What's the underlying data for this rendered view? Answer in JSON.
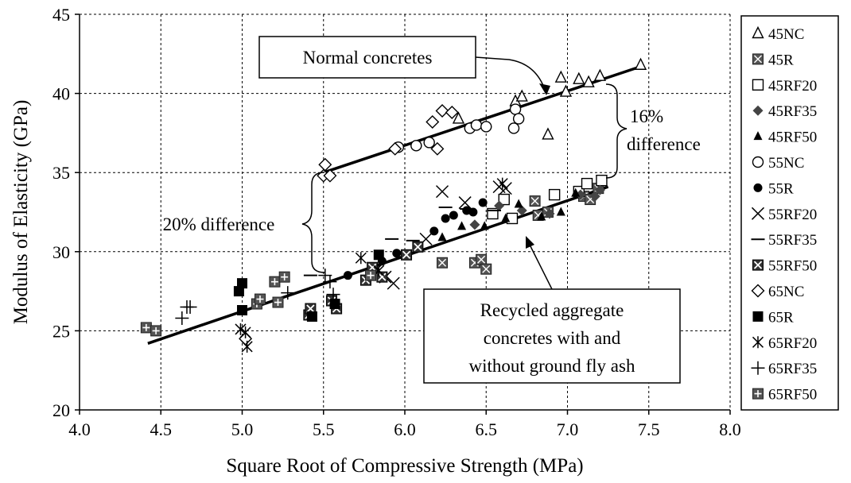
{
  "chart_data": {
    "type": "scatter",
    "title": "",
    "xlabel": "Square Root of Compressive Strength (MPa)",
    "ylabel": "Modulus of Elasticity (GPa)",
    "xlim": [
      4.0,
      8.0
    ],
    "ylim": [
      20,
      45
    ],
    "x_ticks": [
      "4.0",
      "4.5",
      "5.0",
      "5.5",
      "6.0",
      "6.5",
      "7.0",
      "7.5",
      "8.0"
    ],
    "y_ticks": [
      "20",
      "25",
      "30",
      "35",
      "40",
      "45"
    ],
    "grid": true,
    "legend_position": "right",
    "series": [
      {
        "name": "45NC",
        "marker": "triangle-open",
        "points": [
          [
            6.33,
            38.4
          ],
          [
            6.68,
            39.5
          ],
          [
            6.72,
            39.8
          ],
          [
            6.88,
            37.4
          ],
          [
            6.96,
            41.0
          ],
          [
            6.99,
            40.1
          ],
          [
            7.07,
            40.9
          ],
          [
            7.13,
            40.7
          ],
          [
            7.2,
            41.1
          ],
          [
            7.45,
            41.8
          ]
        ]
      },
      {
        "name": "45R",
        "marker": "square-x",
        "points": [
          [
            6.23,
            29.3
          ],
          [
            6.43,
            29.3
          ],
          [
            6.47,
            29.5
          ],
          [
            6.5,
            28.9
          ],
          [
            6.8,
            33.2
          ],
          [
            6.82,
            32.3
          ],
          [
            6.88,
            32.5
          ],
          [
            7.1,
            33.5
          ],
          [
            7.14,
            33.3
          ],
          [
            7.19,
            34.0
          ]
        ]
      },
      {
        "name": "45RF20",
        "marker": "square-open",
        "points": [
          [
            6.54,
            32.4
          ],
          [
            6.61,
            33.3
          ],
          [
            6.66,
            32.1
          ],
          [
            6.92,
            33.6
          ],
          [
            7.07,
            33.8
          ],
          [
            7.12,
            34.3
          ],
          [
            7.21,
            34.5
          ]
        ]
      },
      {
        "name": "45RF35",
        "marker": "diamond-filled",
        "points": [
          [
            6.43,
            31.7
          ],
          [
            6.58,
            32.9
          ],
          [
            6.72,
            32.6
          ],
          [
            6.89,
            32.4
          ],
          [
            7.08,
            33.6
          ],
          [
            7.17,
            33.5
          ],
          [
            7.2,
            33.9
          ]
        ]
      },
      {
        "name": "45RF50",
        "marker": "triangle-filled",
        "points": [
          [
            6.23,
            30.9
          ],
          [
            6.35,
            31.6
          ],
          [
            6.49,
            31.6
          ],
          [
            6.62,
            32.1
          ],
          [
            6.7,
            33.0
          ],
          [
            6.84,
            32.2
          ],
          [
            6.96,
            32.5
          ],
          [
            7.05,
            33.7
          ]
        ]
      },
      {
        "name": "55NC",
        "marker": "circle-open",
        "points": [
          [
            5.96,
            36.6
          ],
          [
            6.07,
            36.7
          ],
          [
            6.15,
            36.9
          ],
          [
            6.4,
            37.8
          ],
          [
            6.44,
            38.0
          ],
          [
            6.5,
            37.9
          ],
          [
            6.67,
            37.8
          ],
          [
            6.68,
            39.0
          ],
          [
            6.7,
            38.4
          ]
        ]
      },
      {
        "name": "55R",
        "marker": "circle-filled",
        "points": [
          [
            5.65,
            28.5
          ],
          [
            5.86,
            29.4
          ],
          [
            5.95,
            29.9
          ],
          [
            6.18,
            31.3
          ],
          [
            6.25,
            32.1
          ],
          [
            6.3,
            32.3
          ],
          [
            6.38,
            32.6
          ],
          [
            6.42,
            32.5
          ],
          [
            6.48,
            33.1
          ]
        ]
      },
      {
        "name": "55RF20",
        "marker": "x",
        "points": [
          [
            5.82,
            28.8
          ],
          [
            5.88,
            28.4
          ],
          [
            5.93,
            28.0
          ],
          [
            6.13,
            30.8
          ],
          [
            6.23,
            33.8
          ],
          [
            6.37,
            33.1
          ],
          [
            6.58,
            34.1
          ],
          [
            6.62,
            34.0
          ]
        ]
      },
      {
        "name": "55RF35",
        "marker": "dash",
        "points": [
          [
            5.42,
            28.5
          ],
          [
            5.92,
            30.8
          ],
          [
            6.05,
            30.7
          ],
          [
            6.25,
            32.8
          ],
          [
            6.38,
            32.7
          ],
          [
            6.55,
            32.6
          ]
        ]
      },
      {
        "name": "55RF50",
        "marker": "square-xbox",
        "points": [
          [
            5.41,
            26.0
          ],
          [
            5.42,
            26.4
          ],
          [
            5.55,
            26.9
          ],
          [
            5.58,
            26.4
          ],
          [
            5.76,
            28.2
          ],
          [
            5.8,
            29.0
          ],
          [
            5.86,
            28.4
          ],
          [
            6.01,
            29.8
          ],
          [
            6.08,
            30.3
          ]
        ]
      },
      {
        "name": "65NC",
        "marker": "diamond-open",
        "points": [
          [
            5.02,
            24.5
          ],
          [
            5.5,
            34.8
          ],
          [
            5.51,
            35.5
          ],
          [
            5.54,
            34.8
          ],
          [
            5.94,
            36.5
          ],
          [
            6.17,
            38.2
          ],
          [
            6.2,
            36.5
          ],
          [
            6.23,
            38.9
          ],
          [
            6.29,
            38.8
          ]
        ]
      },
      {
        "name": "65R",
        "marker": "square-filled",
        "points": [
          [
            4.98,
            27.5
          ],
          [
            5.0,
            28.0
          ],
          [
            5.0,
            26.3
          ],
          [
            5.43,
            25.9
          ],
          [
            5.57,
            26.7
          ],
          [
            5.84,
            29.8
          ]
        ]
      },
      {
        "name": "65RF20",
        "marker": "asterisk",
        "points": [
          [
            4.99,
            25.1
          ],
          [
            5.02,
            24.9
          ],
          [
            5.03,
            24.0
          ],
          [
            5.73,
            29.6
          ],
          [
            5.84,
            28.8
          ],
          [
            6.6,
            34.3
          ]
        ]
      },
      {
        "name": "65RF35",
        "marker": "plus",
        "points": [
          [
            4.63,
            25.8
          ],
          [
            4.66,
            26.5
          ],
          [
            4.68,
            26.5
          ],
          [
            5.28,
            27.4
          ],
          [
            5.51,
            28.5
          ],
          [
            5.54,
            28.1
          ],
          [
            5.56,
            27.3
          ]
        ]
      },
      {
        "name": "65RF50",
        "marker": "square-plus",
        "points": [
          [
            4.41,
            25.2
          ],
          [
            4.47,
            25.0
          ],
          [
            5.09,
            26.7
          ],
          [
            5.11,
            27.0
          ],
          [
            5.2,
            28.1
          ],
          [
            5.22,
            26.8
          ],
          [
            5.26,
            28.4
          ],
          [
            5.79,
            28.5
          ]
        ]
      }
    ],
    "trendlines": [
      {
        "name": "normal",
        "from": [
          5.5,
          35.0
        ],
        "to": [
          7.45,
          41.7
        ]
      },
      {
        "name": "recycled",
        "from": [
          4.42,
          24.2
        ],
        "to": [
          7.25,
          34.1
        ]
      }
    ],
    "annotations": {
      "normal_label": "Normal concretes",
      "recycled_line1": "Recycled aggregate",
      "recycled_line2": "concretes with and",
      "recycled_line3": "without ground fly ash",
      "diff20": "20% difference",
      "diff16_line1": "16%",
      "diff16_line2": "difference"
    }
  }
}
